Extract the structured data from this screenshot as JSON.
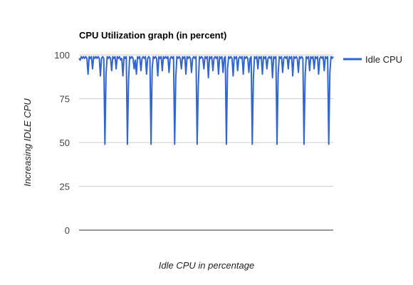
{
  "chart_data": {
    "type": "line",
    "title": "CPU Utilization graph (in percent)",
    "xlabel": "Idle CPU in percentage",
    "ylabel": "Increasing IDLE CPU",
    "ylim": [
      0,
      100
    ],
    "yticks": [
      "0",
      "25",
      "50",
      "75",
      "100"
    ],
    "grid": true,
    "legend_position": "right",
    "series": [
      {
        "name": "Idle CPU",
        "color": "#3366cc",
        "values": [
          98,
          97,
          99,
          98,
          99,
          98,
          99,
          98,
          89,
          99,
          98,
          99,
          92,
          99,
          98,
          99,
          98,
          99,
          98,
          88,
          98,
          99,
          98,
          49,
          89,
          99,
          98,
          99,
          98,
          91,
          99,
          98,
          99,
          92,
          99,
          98,
          99,
          97,
          98,
          88,
          99,
          98,
          99,
          49,
          85,
          99,
          98,
          99,
          98,
          92,
          97,
          89,
          99,
          98,
          99,
          91,
          98,
          99,
          98,
          99,
          89,
          98,
          99,
          98,
          49,
          92,
          99,
          98,
          99,
          98,
          88,
          99,
          98,
          99,
          91,
          99,
          98,
          99,
          98,
          99,
          90,
          98,
          99,
          98,
          99,
          49,
          87,
          99,
          98,
          99,
          98,
          92,
          99,
          98,
          99,
          89,
          99,
          98,
          99,
          98,
          90,
          98,
          99,
          98,
          99,
          49,
          82,
          99,
          98,
          99,
          98,
          92,
          99,
          98,
          99,
          87,
          99,
          98,
          99,
          91,
          98,
          99,
          98,
          99,
          89,
          99,
          98,
          99,
          90,
          98,
          99,
          49,
          92,
          99,
          98,
          99,
          98,
          88,
          99,
          98,
          99,
          91,
          98,
          99,
          98,
          99,
          89,
          99,
          98,
          99,
          98,
          90,
          98,
          99,
          49,
          87,
          99,
          98,
          99,
          92,
          99,
          98,
          99,
          89,
          99,
          98,
          99,
          92,
          98,
          99,
          98,
          99,
          87,
          99,
          98,
          99,
          49,
          89,
          99,
          98,
          99,
          90,
          98,
          99,
          98,
          99,
          92,
          99,
          98,
          99,
          88,
          99,
          98,
          99,
          98,
          90,
          99,
          98,
          99,
          98,
          49,
          88,
          99,
          98,
          99,
          91,
          99,
          98,
          99,
          92,
          99,
          98,
          99,
          89,
          98,
          99,
          98,
          99,
          91,
          99,
          98,
          99,
          49,
          90,
          99,
          98,
          99
        ]
      }
    ]
  }
}
